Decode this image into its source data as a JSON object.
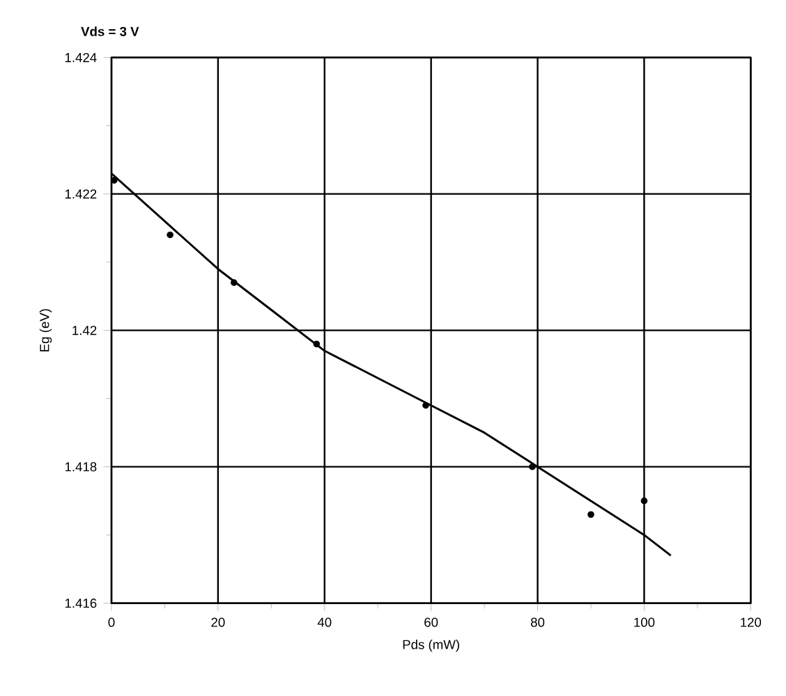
{
  "chart_data": {
    "type": "scatter",
    "xlabel": "Pds (mW)",
    "ylabel": "Eg (eV)",
    "annotations": [
      "Vds = 3 V"
    ],
    "xlim": [
      0,
      120
    ],
    "xticks": [
      0,
      20,
      40,
      60,
      80,
      100,
      120
    ],
    "ylim": [
      1.416,
      1.424
    ],
    "yticks": [
      1.416,
      1.418,
      1.42,
      1.422,
      1.424
    ],
    "grid": true,
    "series": [
      {
        "color": "#000000",
        "marker": "circle",
        "x": [
          0.5,
          11,
          23,
          38.5,
          59,
          79,
          90,
          100
        ],
        "values": [
          1.4222,
          1.4214,
          1.4207,
          1.4198,
          1.4189,
          1.418,
          1.4173,
          1.4175
        ]
      },
      {
        "type": "line",
        "color": "#000000",
        "marker": "none",
        "line_style": "solid",
        "x": [
          0,
          10,
          20,
          30,
          40,
          50,
          60,
          70,
          80,
          90,
          100,
          105
        ],
        "values": [
          1.4223,
          1.4216,
          1.4209,
          1.4203,
          1.4197,
          1.4193,
          1.4189,
          1.4185,
          1.418,
          1.4175,
          1.417,
          1.4167
        ]
      }
    ]
  }
}
